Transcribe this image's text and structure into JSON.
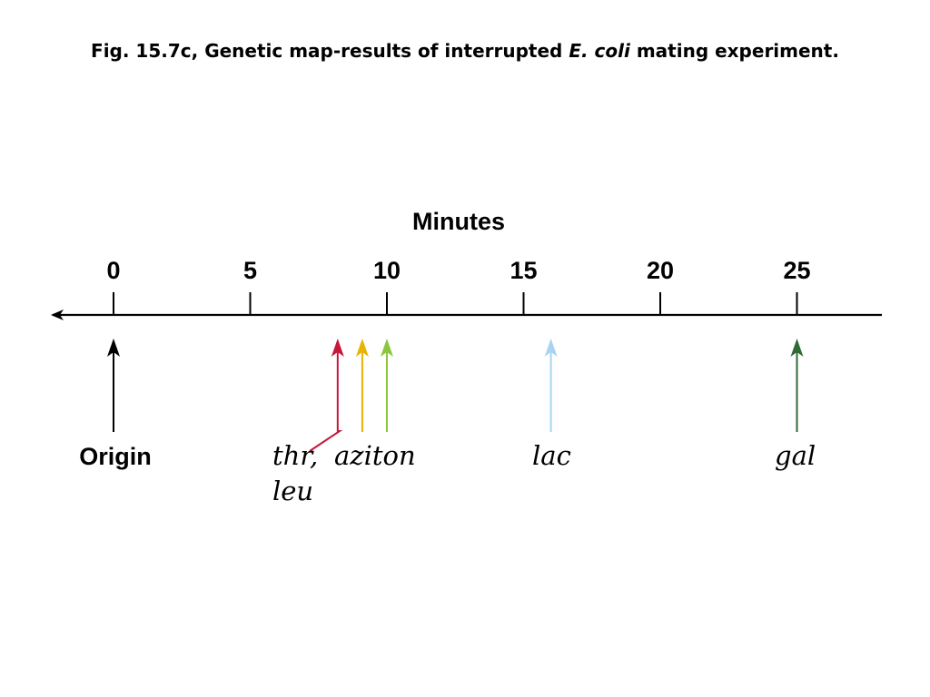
{
  "title": {
    "prefix": "Fig. 15.7c, Genetic map-results of interrupted ",
    "italic": "E. coli",
    "suffix": " mating experiment."
  },
  "axis": {
    "label": "Minutes",
    "ticks": [
      0,
      5,
      10,
      15,
      20,
      25
    ]
  },
  "origin": {
    "label": "Origin",
    "minute": 0,
    "color": "#000000"
  },
  "markers": [
    {
      "id": "thr-leu",
      "minute": 8.2,
      "color": "#c8173c"
    },
    {
      "id": "azi",
      "minute": 9.1,
      "color": "#e8b400"
    },
    {
      "id": "ton",
      "minute": 10.0,
      "color": "#8cc63f"
    },
    {
      "id": "lac",
      "minute": 16.0,
      "color": "#a8d4f0"
    },
    {
      "id": "gal",
      "minute": 25.0,
      "color": "#2f6b35"
    }
  ],
  "gene_labels": {
    "thr": "thr,",
    "leu": "leu",
    "aziton": "aziton",
    "lac": "lac",
    "gal": "gal"
  }
}
